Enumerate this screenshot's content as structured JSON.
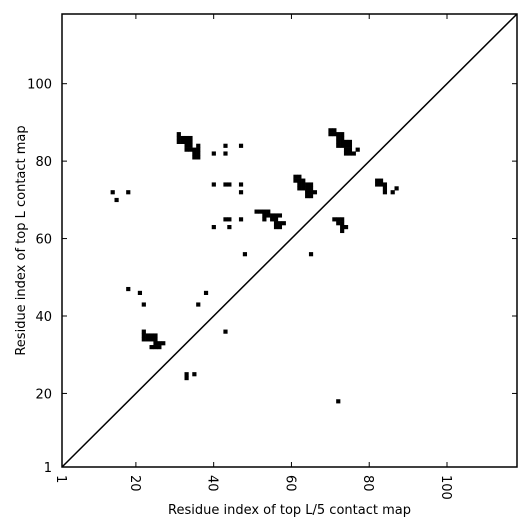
{
  "chart_data": {
    "type": "heatmap",
    "title": "",
    "xlabel": "Residue index of top L/5 contact map",
    "ylabel": "Residue index of top L contact map",
    "xlim": [
      1,
      118
    ],
    "ylim": [
      1,
      118
    ],
    "x_ticks": [
      1,
      20,
      40,
      60,
      80,
      100
    ],
    "y_ticks": [
      1,
      20,
      40,
      60,
      80,
      100
    ],
    "x_tick_labels": [
      "1",
      "20",
      "40",
      "60",
      "80",
      "100"
    ],
    "y_tick_labels": [
      "1",
      "20",
      "40",
      "60",
      "80",
      "100"
    ],
    "grid": false,
    "diagonal": true,
    "cell_color": "#000000",
    "background_color": "#ffffff",
    "cells": [
      [
        31,
        87
      ],
      [
        31,
        86
      ],
      [
        32,
        86
      ],
      [
        33,
        86
      ],
      [
        34,
        86
      ],
      [
        31,
        85
      ],
      [
        32,
        85
      ],
      [
        33,
        85
      ],
      [
        34,
        85
      ],
      [
        33,
        84
      ],
      [
        34,
        84
      ],
      [
        36,
        84
      ],
      [
        33,
        83
      ],
      [
        34,
        83
      ],
      [
        35,
        83
      ],
      [
        36,
        83
      ],
      [
        35,
        82
      ],
      [
        36,
        82
      ],
      [
        35,
        81
      ],
      [
        36,
        81
      ],
      [
        43,
        84
      ],
      [
        47,
        84
      ],
      [
        40,
        82
      ],
      [
        43,
        82
      ],
      [
        14,
        72
      ],
      [
        18,
        72
      ],
      [
        15,
        70
      ],
      [
        40,
        74
      ],
      [
        43,
        74
      ],
      [
        44,
        74
      ],
      [
        47,
        74
      ],
      [
        47,
        72
      ],
      [
        43,
        65
      ],
      [
        44,
        65
      ],
      [
        47,
        65
      ],
      [
        40,
        63
      ],
      [
        44,
        63
      ],
      [
        48,
        56
      ],
      [
        18,
        47
      ],
      [
        21,
        46
      ],
      [
        38,
        46
      ],
      [
        22,
        43
      ],
      [
        36,
        43
      ],
      [
        22,
        36
      ],
      [
        22,
        35
      ],
      [
        23,
        35
      ],
      [
        24,
        35
      ],
      [
        25,
        35
      ],
      [
        22,
        34
      ],
      [
        23,
        34
      ],
      [
        24,
        34
      ],
      [
        25,
        34
      ],
      [
        25,
        33
      ],
      [
        26,
        33
      ],
      [
        27,
        33
      ],
      [
        24,
        32
      ],
      [
        25,
        32
      ],
      [
        26,
        32
      ],
      [
        43,
        36
      ],
      [
        33,
        25
      ],
      [
        35,
        25
      ],
      [
        33,
        24
      ],
      [
        70,
        88
      ],
      [
        71,
        88
      ],
      [
        70,
        87
      ],
      [
        71,
        87
      ],
      [
        72,
        87
      ],
      [
        73,
        87
      ],
      [
        72,
        86
      ],
      [
        73,
        86
      ],
      [
        72,
        85
      ],
      [
        73,
        85
      ],
      [
        74,
        85
      ],
      [
        75,
        85
      ],
      [
        72,
        84
      ],
      [
        73,
        84
      ],
      [
        74,
        84
      ],
      [
        75,
        84
      ],
      [
        74,
        83
      ],
      [
        75,
        83
      ],
      [
        77,
        83
      ],
      [
        74,
        82
      ],
      [
        75,
        82
      ],
      [
        76,
        82
      ],
      [
        61,
        76
      ],
      [
        62,
        76
      ],
      [
        61,
        75
      ],
      [
        62,
        75
      ],
      [
        63,
        75
      ],
      [
        62,
        74
      ],
      [
        63,
        74
      ],
      [
        64,
        74
      ],
      [
        65,
        74
      ],
      [
        62,
        73
      ],
      [
        63,
        73
      ],
      [
        64,
        73
      ],
      [
        65,
        73
      ],
      [
        64,
        72
      ],
      [
        65,
        72
      ],
      [
        66,
        72
      ],
      [
        64,
        71
      ],
      [
        65,
        71
      ],
      [
        82,
        75
      ],
      [
        83,
        75
      ],
      [
        82,
        74
      ],
      [
        83,
        74
      ],
      [
        84,
        74
      ],
      [
        84,
        73
      ],
      [
        87,
        73
      ],
      [
        84,
        72
      ],
      [
        86,
        72
      ],
      [
        51,
        67
      ],
      [
        52,
        67
      ],
      [
        53,
        67
      ],
      [
        54,
        67
      ],
      [
        53,
        66
      ],
      [
        54,
        66
      ],
      [
        55,
        66
      ],
      [
        56,
        66
      ],
      [
        57,
        66
      ],
      [
        53,
        65
      ],
      [
        55,
        65
      ],
      [
        56,
        65
      ],
      [
        56,
        64
      ],
      [
        57,
        64
      ],
      [
        58,
        64
      ],
      [
        56,
        63
      ],
      [
        57,
        63
      ],
      [
        71,
        65
      ],
      [
        72,
        65
      ],
      [
        73,
        65
      ],
      [
        72,
        64
      ],
      [
        73,
        64
      ],
      [
        73,
        63
      ],
      [
        74,
        63
      ],
      [
        73,
        62
      ],
      [
        65,
        56
      ],
      [
        72,
        18
      ]
    ]
  }
}
